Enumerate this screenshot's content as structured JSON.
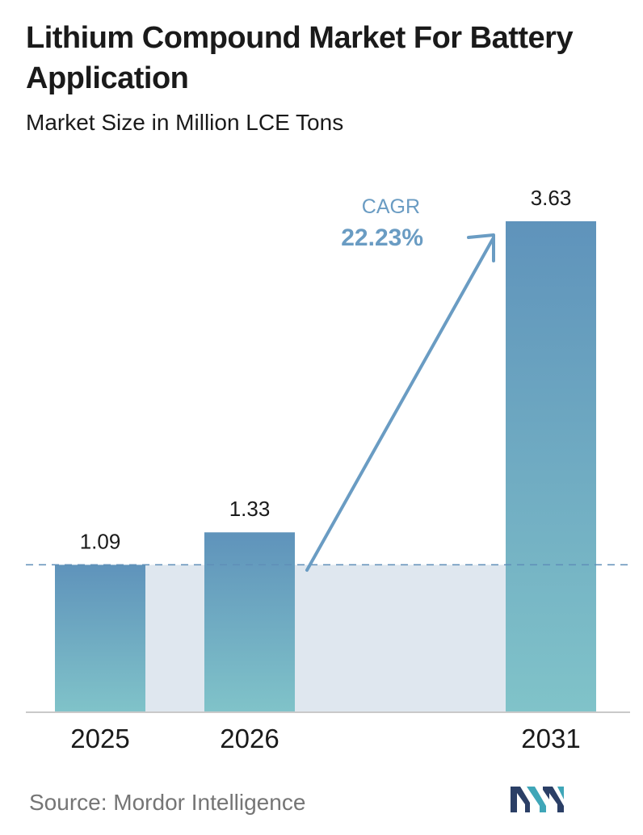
{
  "title": "Lithium Compound Market For Battery Application",
  "subtitle": "Market Size in Million LCE Tons",
  "source": "Source:  Mordor Intelligence",
  "cagr": {
    "label": "CAGR",
    "value": "22.23%"
  },
  "colors": {
    "bar_top": "#5f93bb",
    "bar_bottom": "#80c3c9",
    "shaded_band": "#dfe7ef",
    "baseline_dash": "#5f8fb8",
    "arrow": "#6a9cc3",
    "cagr_text": "#6a9cc3"
  },
  "logo": {
    "name": "mordor-intelligence-logo"
  },
  "chart_data": {
    "type": "bar",
    "categories": [
      "2025",
      "2026",
      "2031"
    ],
    "values": [
      1.09,
      1.33,
      3.63
    ],
    "data_labels": [
      "1.09",
      "1.33",
      "3.63"
    ],
    "ylim": [
      0,
      3.63
    ],
    "grid": false,
    "reference_line": 1.09
  }
}
